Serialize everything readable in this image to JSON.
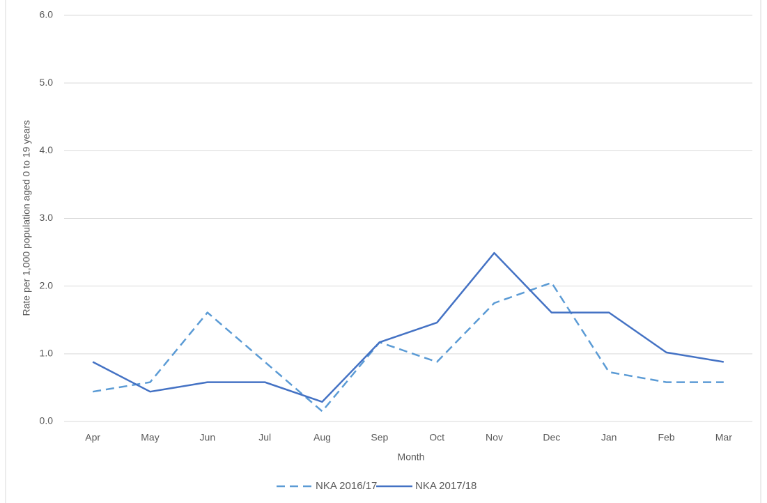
{
  "chart_data": {
    "type": "line",
    "x_label": "Month",
    "y_label": "Rate per 1,000 population aged 0 to 19 years",
    "categories": [
      "Apr",
      "May",
      "Jun",
      "Jul",
      "Aug",
      "Sep",
      "Oct",
      "Nov",
      "Dec",
      "Jan",
      "Feb",
      "Mar"
    ],
    "series": [
      {
        "name": "NKA 2016/17",
        "color": "#5b9bd5",
        "dashed": true,
        "values": [
          0.44,
          0.58,
          1.61,
          0.88,
          0.15,
          1.17,
          0.88,
          1.75,
          2.05,
          0.73,
          0.58,
          0.58
        ]
      },
      {
        "name": "NKA 2017/18",
        "color": "#4472c4",
        "dashed": false,
        "values": [
          0.88,
          0.44,
          0.58,
          0.58,
          0.29,
          1.17,
          1.46,
          2.49,
          1.61,
          1.61,
          1.02,
          0.88
        ]
      }
    ],
    "ylim": [
      0,
      6
    ],
    "yticks": [
      {
        "value": 0,
        "label": "0.0"
      },
      {
        "value": 1,
        "label": "1.0"
      },
      {
        "value": 2,
        "label": "2.0"
      },
      {
        "value": 3,
        "label": "3.0"
      },
      {
        "value": 4,
        "label": "4.0"
      },
      {
        "value": 5,
        "label": "5.0"
      },
      {
        "value": 6,
        "label": "6.0"
      }
    ],
    "grid": true,
    "legend": "bottom"
  }
}
